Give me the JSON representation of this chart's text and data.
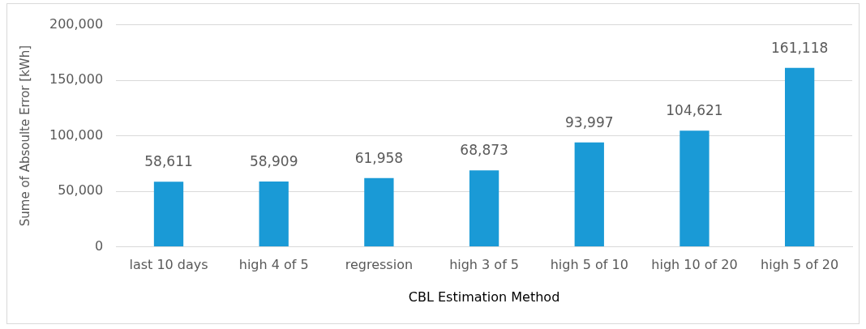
{
  "chart_data": {
    "type": "bar",
    "xlabel": "CBL Estimation Method",
    "ylabel": "Sume of Absoulte Error [kWh]",
    "categories": [
      "last 10 days",
      "high 4 of 5",
      "regression",
      "high 3 of 5",
      "high 5 of 10",
      "high 10 of 20",
      "high 5 of 20"
    ],
    "values": [
      58611,
      58909,
      61958,
      68873,
      93997,
      104621,
      161118
    ],
    "value_labels": [
      "58,611",
      "58,909",
      "61,958",
      "68,873",
      "93,997",
      "104,621",
      "161,118"
    ],
    "color": "#1a9ad6",
    "ylim": [
      0,
      200000
    ],
    "yticks": [
      {
        "value": 0,
        "label": "0"
      },
      {
        "value": 50000,
        "label": "50,000"
      },
      {
        "value": 100000,
        "label": "100,000"
      },
      {
        "value": 150000,
        "label": "150,000"
      },
      {
        "value": 200000,
        "label": "200,000"
      }
    ],
    "grid": "y",
    "legend": false
  }
}
